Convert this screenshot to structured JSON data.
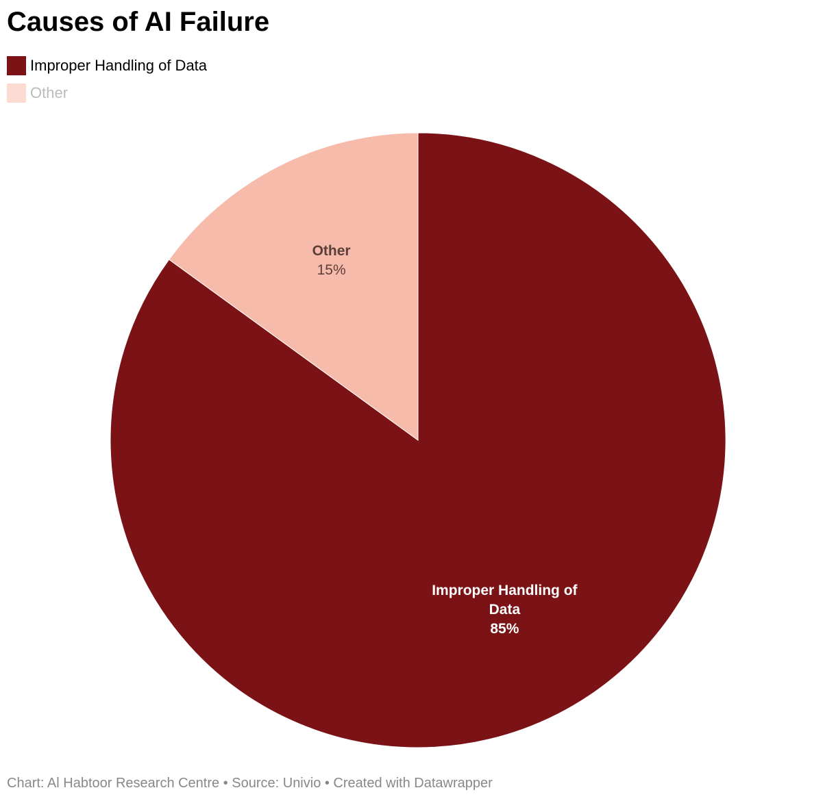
{
  "chart_data": {
    "type": "pie",
    "title": "Causes of AI Failure",
    "categories": [
      "Improper Handling of Data",
      "Other"
    ],
    "values": [
      85,
      15
    ],
    "value_labels": [
      "85%",
      "15%"
    ],
    "colors": [
      "#7b1216",
      "#f7bbab"
    ],
    "footer": "Chart: Al Habtoor Research Centre • Source: Univio • Created with Datawrapper"
  }
}
